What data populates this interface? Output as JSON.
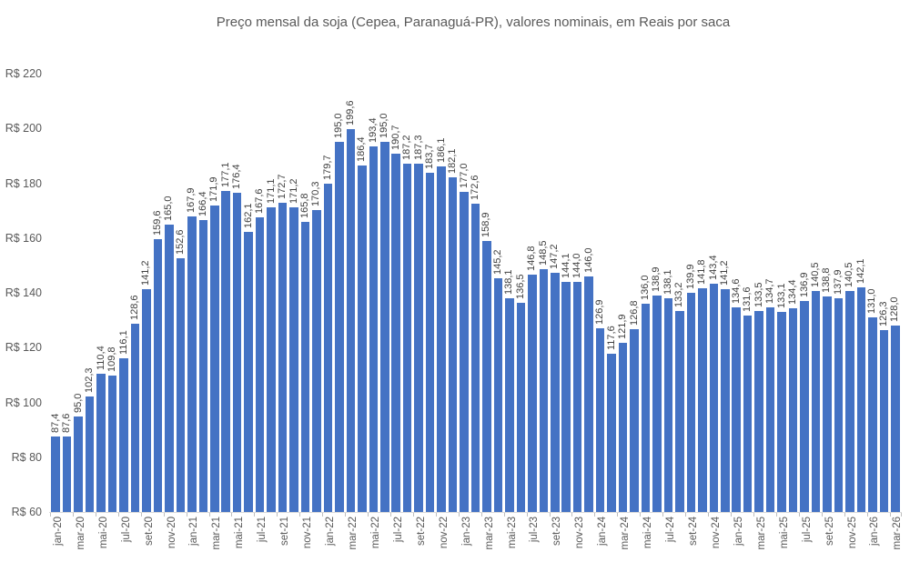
{
  "title": "Preço mensal da soja (Cepea, Paranaguá-PR), valores nominais, em Reais por saca",
  "chart_data": {
    "type": "bar",
    "title": "Preço mensal da soja (Cepea, Paranaguá-PR), valores nominais, em Reais por saca",
    "xlabel": "",
    "ylabel": "",
    "bar_color": "#4472C4",
    "label_color": "#404040",
    "axis_text_color": "#595959",
    "grid": false,
    "legend": false,
    "ylim": [
      60,
      220
    ],
    "y_tick_step": 20,
    "y_tick_labels": [
      "R$ 220",
      "R$ 200",
      "R$ 180",
      "R$ 160",
      "R$ 140",
      "R$ 120",
      "R$ 100",
      "R$ 80",
      "R$ 60"
    ],
    "x_label_interval": 2,
    "x_tick_labels": [
      "jan-20",
      "mar-20",
      "mai-20",
      "jul-20",
      "set-20",
      "nov-20",
      "jan-21",
      "mar-21",
      "mai-21",
      "jul-21",
      "set-21",
      "nov-21",
      "jan-22",
      "mar-22",
      "mai-22",
      "jul-22",
      "set-22",
      "nov-22",
      "jan-23",
      "mar-23",
      "mai-23",
      "jul-23",
      "set-23",
      "nov-23",
      "jan-24",
      "mar-24",
      "mai-24",
      "jul-24",
      "set-24",
      "nov-24",
      "jan-25",
      "mar-25",
      "mai-25",
      "jul-25",
      "set-25",
      "nov-25",
      "jan-26",
      "mar-26"
    ],
    "decimal_separator": ",",
    "values": [
      87.4,
      87.6,
      95.0,
      102.3,
      110.4,
      109.8,
      116.1,
      128.6,
      141.2,
      159.6,
      165.0,
      152.6,
      167.9,
      166.4,
      171.9,
      177.1,
      176.4,
      162.1,
      167.6,
      171.1,
      172.7,
      171.2,
      165.8,
      170.3,
      179.7,
      195.0,
      199.6,
      186.4,
      193.4,
      195.0,
      190.7,
      187.2,
      187.3,
      183.7,
      186.1,
      182.1,
      177.0,
      172.6,
      158.9,
      145.2,
      138.1,
      136.5,
      146.8,
      148.5,
      147.2,
      144.1,
      144.0,
      146.0,
      126.9,
      117.6,
      121.9,
      126.8,
      136.0,
      138.9,
      138.1,
      133.2,
      139.9,
      141.8,
      143.4,
      141.2,
      134.6,
      131.6,
      133.5,
      134.7,
      133.1,
      134.4,
      136.9,
      140.5,
      138.8,
      137.9,
      140.5,
      142.1,
      131.0,
      126.3,
      128.0
    ]
  }
}
